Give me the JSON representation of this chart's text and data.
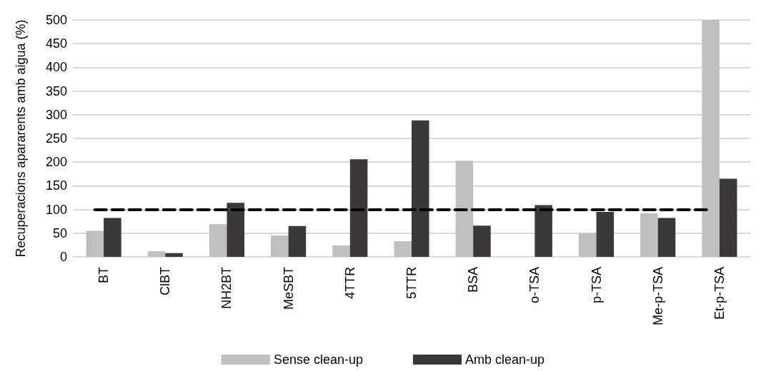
{
  "chart_data": {
    "type": "bar",
    "ylabel": "Recuperacions apararents amb aigua (%)",
    "categories": [
      "BT",
      "ClBT",
      "NH2BT",
      "MeSBT",
      "4TTR",
      "5TTR",
      "BSA",
      "o-TSA",
      "p-TSA",
      "Me-p-TSA",
      "Et-p-TSA"
    ],
    "series": [
      {
        "name": "Sense clean-up",
        "color": "#bfbfbf",
        "values": [
          55,
          12,
          69,
          45,
          24,
          33,
          203,
          0,
          50,
          92,
          500
        ]
      },
      {
        "name": "Amb clean-up",
        "color": "#3a3937",
        "values": [
          82,
          8,
          114,
          65,
          206,
          288,
          66,
          109,
          95,
          82,
          165
        ]
      }
    ],
    "ylim": [
      0,
      500
    ],
    "yticks": [
      0,
      50,
      100,
      150,
      200,
      250,
      300,
      350,
      400,
      450,
      500
    ],
    "ref_lines": [
      {
        "axis": "y",
        "value": 100,
        "color": "#000000",
        "line_style": "dashed"
      }
    ],
    "grid": "y",
    "legend": "bottom"
  }
}
